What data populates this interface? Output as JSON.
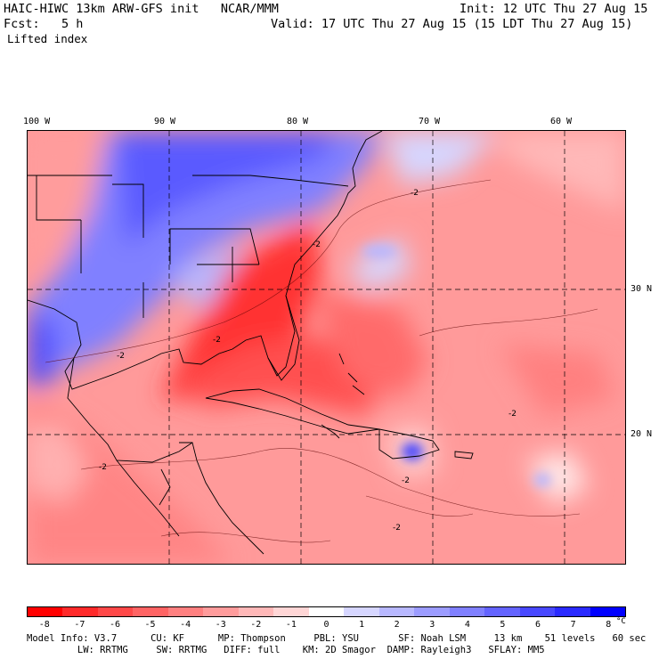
{
  "header": {
    "title": "HAIC-HIWC 13km ARW-GFS init   NCAR/MMM",
    "init": "Init: 12 UTC Thu 27 Aug 15",
    "fcst": "Fcst:   5 h",
    "valid": "Valid: 17 UTC Thu 27 Aug 15 (15 LDT Thu 27 Aug 15)",
    "field": "Lifted index"
  },
  "lon_labels": [
    "100 W",
    "90 W",
    "80 W",
    "70 W",
    "60 W"
  ],
  "lat_labels": [
    "30 N",
    "20 N"
  ],
  "contour_label": "-2",
  "colorbar": {
    "colors": [
      "#ff0000",
      "#ff2a2a",
      "#ff4848",
      "#ff6464",
      "#ff8080",
      "#ff9c9c",
      "#ffb8b8",
      "#ffd6d6",
      "#ffffff",
      "#d6d6ff",
      "#b8b8ff",
      "#9c9cff",
      "#8080ff",
      "#6464ff",
      "#4848ff",
      "#2a2aff",
      "#0000ff"
    ],
    "ticks": [
      "-8",
      "-7",
      "-6",
      "-5",
      "-4",
      "-3",
      "-2",
      "-1",
      "0",
      "1",
      "2",
      "3",
      "4",
      "5",
      "6",
      "7",
      "8"
    ],
    "unit": "°C"
  },
  "model_info": {
    "line1": "Model Info: V3.7      CU: KF      MP: Thompson     PBL: YSU       SF: Noah LSM     13 km    51 levels   60 sec",
    "line2": "         LW: RRTMG     SW: RRTMG   DIFF: full    KM: 2D Smagor  DAMP: Rayleigh3   SFLAY: MM5"
  }
}
